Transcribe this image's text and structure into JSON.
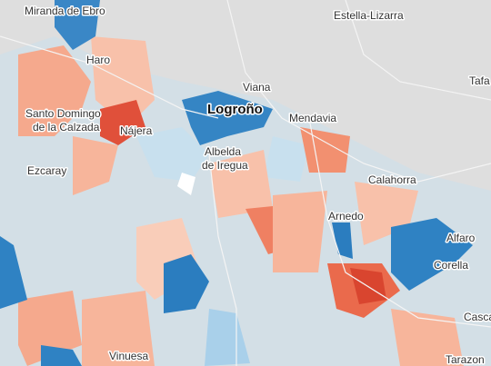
{
  "places": [
    {
      "name": "Miranda de Ebro"
    },
    {
      "name": "Estella-Lizarra"
    },
    {
      "name": "Tafa"
    },
    {
      "name": "Haro"
    },
    {
      "name": "Viana"
    },
    {
      "name": "Logroño"
    },
    {
      "name": "Mendavia"
    },
    {
      "lines": [
        "Santo Domingo",
        "de la Calzada"
      ]
    },
    {
      "name": "Nájera"
    },
    {
      "lines": [
        "Albelda",
        "de Iregua"
      ]
    },
    {
      "name": "Ezcaray"
    },
    {
      "name": "Calahorra"
    },
    {
      "name": "Arnedo"
    },
    {
      "name": "Alfaro"
    },
    {
      "name": "Corella"
    },
    {
      "name": "Casca"
    },
    {
      "name": "Vinuesa"
    },
    {
      "name": "Tarazon"
    }
  ]
}
